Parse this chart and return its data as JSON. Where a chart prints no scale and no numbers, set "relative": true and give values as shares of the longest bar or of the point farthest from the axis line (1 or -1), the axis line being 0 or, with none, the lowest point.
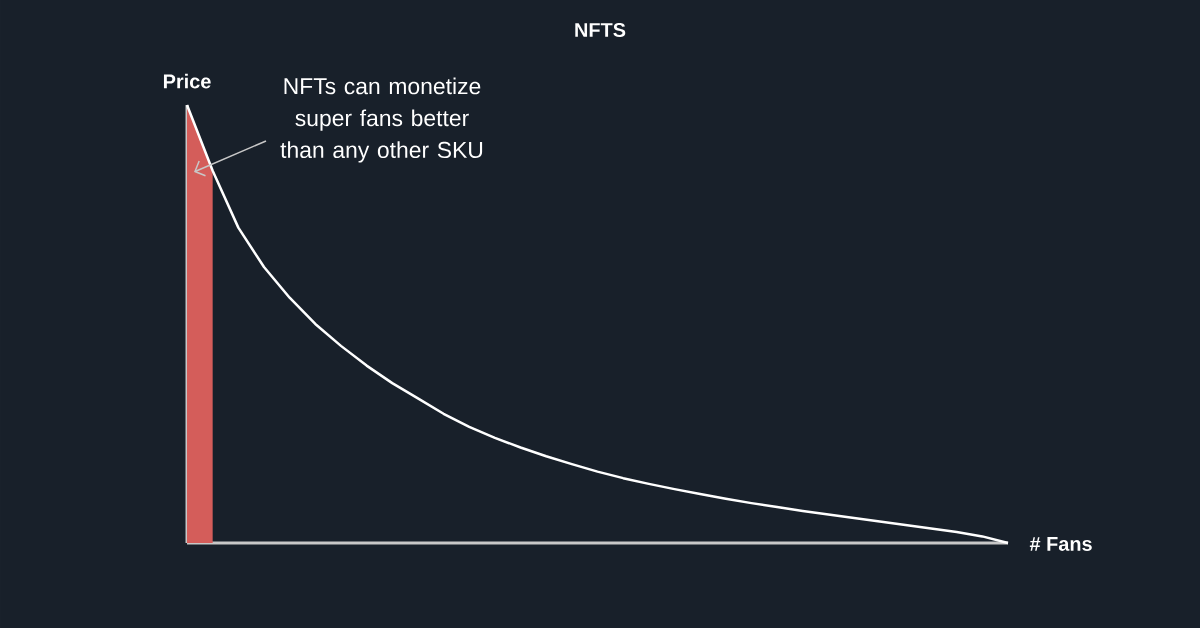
{
  "chart_data": {
    "type": "line",
    "title": "NFTS",
    "xlabel": "# Fans",
    "ylabel": "Price",
    "relative": true,
    "categories": [
      null,
      null,
      null,
      null,
      null,
      null,
      null,
      null,
      null,
      null,
      null,
      null,
      null,
      null,
      null,
      null,
      null,
      null,
      null,
      null,
      null,
      null,
      null,
      null,
      null,
      null,
      null,
      null,
      null,
      null,
      null,
      null,
      null
    ],
    "series": [
      {
        "type": "area",
        "color": "#d45d5a",
        "values": [
          1.0,
          0.85,
          null,
          null,
          null,
          null,
          null,
          null,
          null,
          null,
          null,
          null,
          null,
          null,
          null,
          null,
          null,
          null,
          null,
          null,
          null,
          null,
          null,
          null,
          null,
          null,
          null,
          null,
          null,
          null,
          null,
          null,
          null
        ]
      },
      {
        "color": "#ffffff",
        "values": [
          1.0,
          0.85,
          0.72,
          0.63,
          0.56,
          0.5,
          0.45,
          0.405,
          0.365,
          0.33,
          0.295,
          0.265,
          0.24,
          0.218,
          0.198,
          0.18,
          0.163,
          0.148,
          0.135,
          0.123,
          0.112,
          0.101,
          0.091,
          0.082,
          0.073,
          0.065,
          0.057,
          0.049,
          0.041,
          0.033,
          0.025,
          0.015,
          0.0
        ]
      }
    ],
    "annotations": [
      "NFTs can monetize super fans better than any other SKU"
    ]
  }
}
